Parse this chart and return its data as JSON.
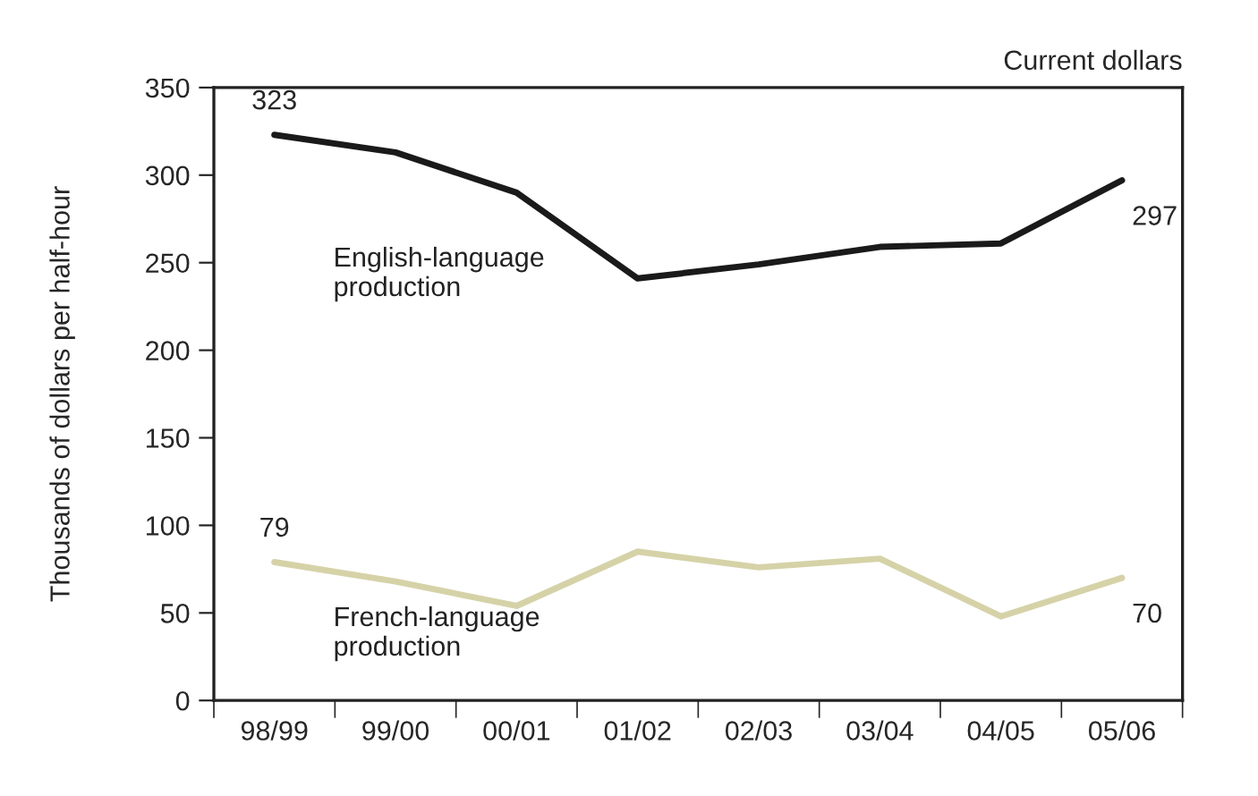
{
  "chart_data": {
    "type": "line",
    "ylabel": "Thousands of dollars per half-hour",
    "annotations": [
      "Current dollars"
    ],
    "categories": [
      "98/99",
      "99/00",
      "00/01",
      "01/02",
      "02/03",
      "03/04",
      "04/05",
      "05/06"
    ],
    "series": [
      {
        "name": "English-language\nproduction",
        "color": "#1a1a1a",
        "values": [
          323,
          313,
          290,
          241,
          249,
          259,
          261,
          297
        ],
        "value_labels": [
          "323",
          null,
          null,
          null,
          null,
          null,
          null,
          "297"
        ]
      },
      {
        "name": "French-language\nproduction",
        "color": "#d6d2a8",
        "values": [
          79,
          68,
          54,
          85,
          76,
          81,
          48,
          70
        ],
        "value_labels": [
          "79",
          null,
          null,
          null,
          null,
          null,
          null,
          "70"
        ]
      }
    ],
    "ylim": [
      0,
      350
    ],
    "yticks": [
      0,
      50,
      100,
      150,
      200,
      250,
      300,
      350
    ],
    "grid": false,
    "legend": false,
    "marker": "none",
    "line_style": "solid"
  }
}
